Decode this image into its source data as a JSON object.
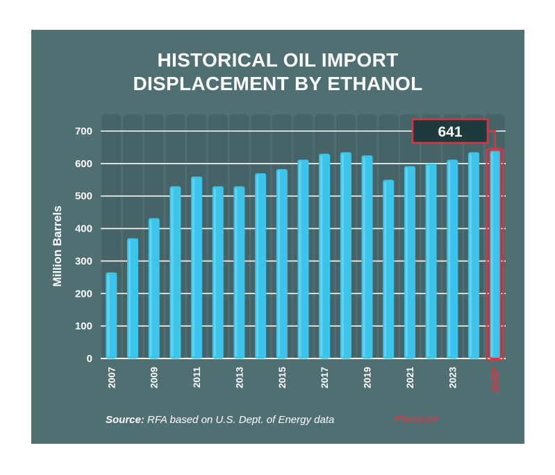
{
  "title_line1": "HISTORICAL OIL IMPORT",
  "title_line2": "DISPLACEMENT BY ETHANOL",
  "source_label": "Source:",
  "source_text": "RFA based on U.S. Dept. of Energy data",
  "forecast_note": "*Forecast",
  "highlight_label": "641",
  "colors": {
    "background": "#4f6f72",
    "bar": "#3cc4ea",
    "highlight": "#e0323f",
    "text": "#ffffff"
  },
  "chart_data": {
    "type": "bar",
    "title": "HISTORICAL OIL IMPORT DISPLACEMENT BY ETHANOL",
    "ylabel": "Million Barrels",
    "xlabel": "",
    "ylim": [
      0,
      700
    ],
    "yticks": [
      0,
      100,
      200,
      300,
      400,
      500,
      600,
      700
    ],
    "grid": true,
    "categories": [
      "2007",
      "2008",
      "2009",
      "2010",
      "2011",
      "2012",
      "2013",
      "2014",
      "2015",
      "2016",
      "2017",
      "2018",
      "2019",
      "2020",
      "2021",
      "2022",
      "2023",
      "2024",
      "2025*"
    ],
    "tick_labels": [
      "2007",
      "",
      "2009",
      "",
      "2011",
      "",
      "2013",
      "",
      "2015",
      "",
      "2017",
      "",
      "2019",
      "",
      "2021",
      "",
      "2023",
      "",
      "2025*"
    ],
    "values": [
      265,
      370,
      432,
      530,
      560,
      530,
      530,
      570,
      583,
      612,
      630,
      635,
      625,
      550,
      592,
      600,
      612,
      635,
      641
    ],
    "highlight_index": 18
  }
}
